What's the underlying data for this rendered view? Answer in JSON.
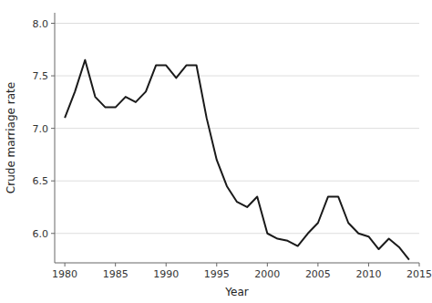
{
  "chart_data": {
    "type": "line",
    "x": [
      1980,
      1981,
      1982,
      1983,
      1984,
      1985,
      1986,
      1987,
      1988,
      1989,
      1990,
      1991,
      1992,
      1993,
      1994,
      1995,
      1996,
      1997,
      1998,
      1999,
      2000,
      2001,
      2002,
      2003,
      2004,
      2005,
      2006,
      2007,
      2008,
      2009,
      2010,
      2011,
      2012,
      2013,
      2014
    ],
    "values": [
      7.1,
      7.35,
      7.65,
      7.3,
      7.2,
      7.2,
      7.3,
      7.25,
      7.35,
      7.6,
      7.6,
      7.48,
      7.6,
      7.6,
      7.1,
      6.7,
      6.45,
      6.3,
      6.25,
      6.35,
      6.0,
      5.95,
      5.93,
      5.88,
      6.0,
      6.1,
      6.35,
      6.35,
      6.1,
      6.0,
      5.97,
      5.85,
      5.95,
      5.87,
      5.75
    ],
    "xlabel": "Year",
    "ylabel": "Crude marriage rate",
    "xlim": [
      1979,
      2015
    ],
    "ylim": [
      5.72,
      8.1
    ],
    "xticks": [
      1980,
      1985,
      1990,
      1995,
      2000,
      2005,
      2010,
      2015
    ],
    "yticks": [
      {
        "value": 6.0,
        "label": "6.0"
      },
      6.5,
      {
        "value": 7.0,
        "label": "7.0"
      },
      7.5,
      {
        "value": 8.0,
        "label": "8.0"
      }
    ],
    "color": "#1a1a1a",
    "grid": true
  }
}
